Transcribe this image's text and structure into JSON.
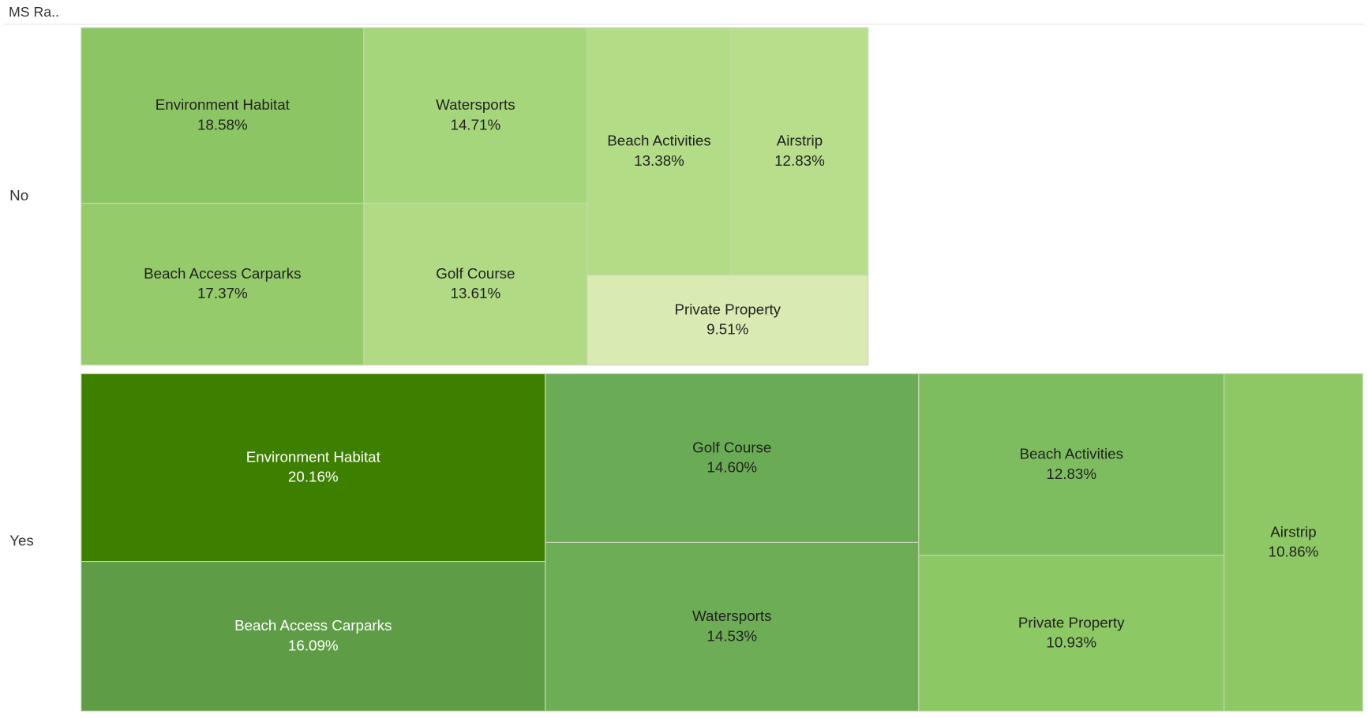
{
  "chart_data": {
    "type": "treemap",
    "header": "MS Ra..",
    "groups": [
      {
        "name": "No",
        "items": [
          {
            "name": "Environment Habitat",
            "value": 18.58,
            "value_label": "18.58%",
            "color": "#8cc563"
          },
          {
            "name": "Beach Access Carparks",
            "value": 17.37,
            "value_label": "17.37%",
            "color": "#95cb6b"
          },
          {
            "name": "Watersports",
            "value": 14.71,
            "value_label": "14.71%",
            "color": "#a6d67b"
          },
          {
            "name": "Golf Course",
            "value": 13.61,
            "value_label": "13.61%",
            "color": "#b0da84"
          },
          {
            "name": "Beach Activities",
            "value": 13.38,
            "value_label": "13.38%",
            "color": "#b3dc87"
          },
          {
            "name": "Airstrip",
            "value": 12.83,
            "value_label": "12.83%",
            "color": "#b8de8c"
          },
          {
            "name": "Private Property",
            "value": 9.51,
            "value_label": "9.51%",
            "color": "#d9eab2"
          }
        ]
      },
      {
        "name": "Yes",
        "items": [
          {
            "name": "Environment Habitat",
            "value": 20.16,
            "value_label": "20.16%",
            "color": "#3d8000"
          },
          {
            "name": "Beach Access Carparks",
            "value": 16.09,
            "value_label": "16.09%",
            "color": "#5e9d45"
          },
          {
            "name": "Golf Course",
            "value": 14.6,
            "value_label": "14.60%",
            "color": "#6aab55"
          },
          {
            "name": "Watersports",
            "value": 14.53,
            "value_label": "14.53%",
            "color": "#6cad56"
          },
          {
            "name": "Beach Activities",
            "value": 12.83,
            "value_label": "12.83%",
            "color": "#7dbd60"
          },
          {
            "name": "Private Property",
            "value": 10.93,
            "value_label": "10.93%",
            "color": "#8cc863"
          },
          {
            "name": "Airstrip",
            "value": 10.86,
            "value_label": "10.86%",
            "color": "#8dc864"
          }
        ]
      }
    ]
  }
}
